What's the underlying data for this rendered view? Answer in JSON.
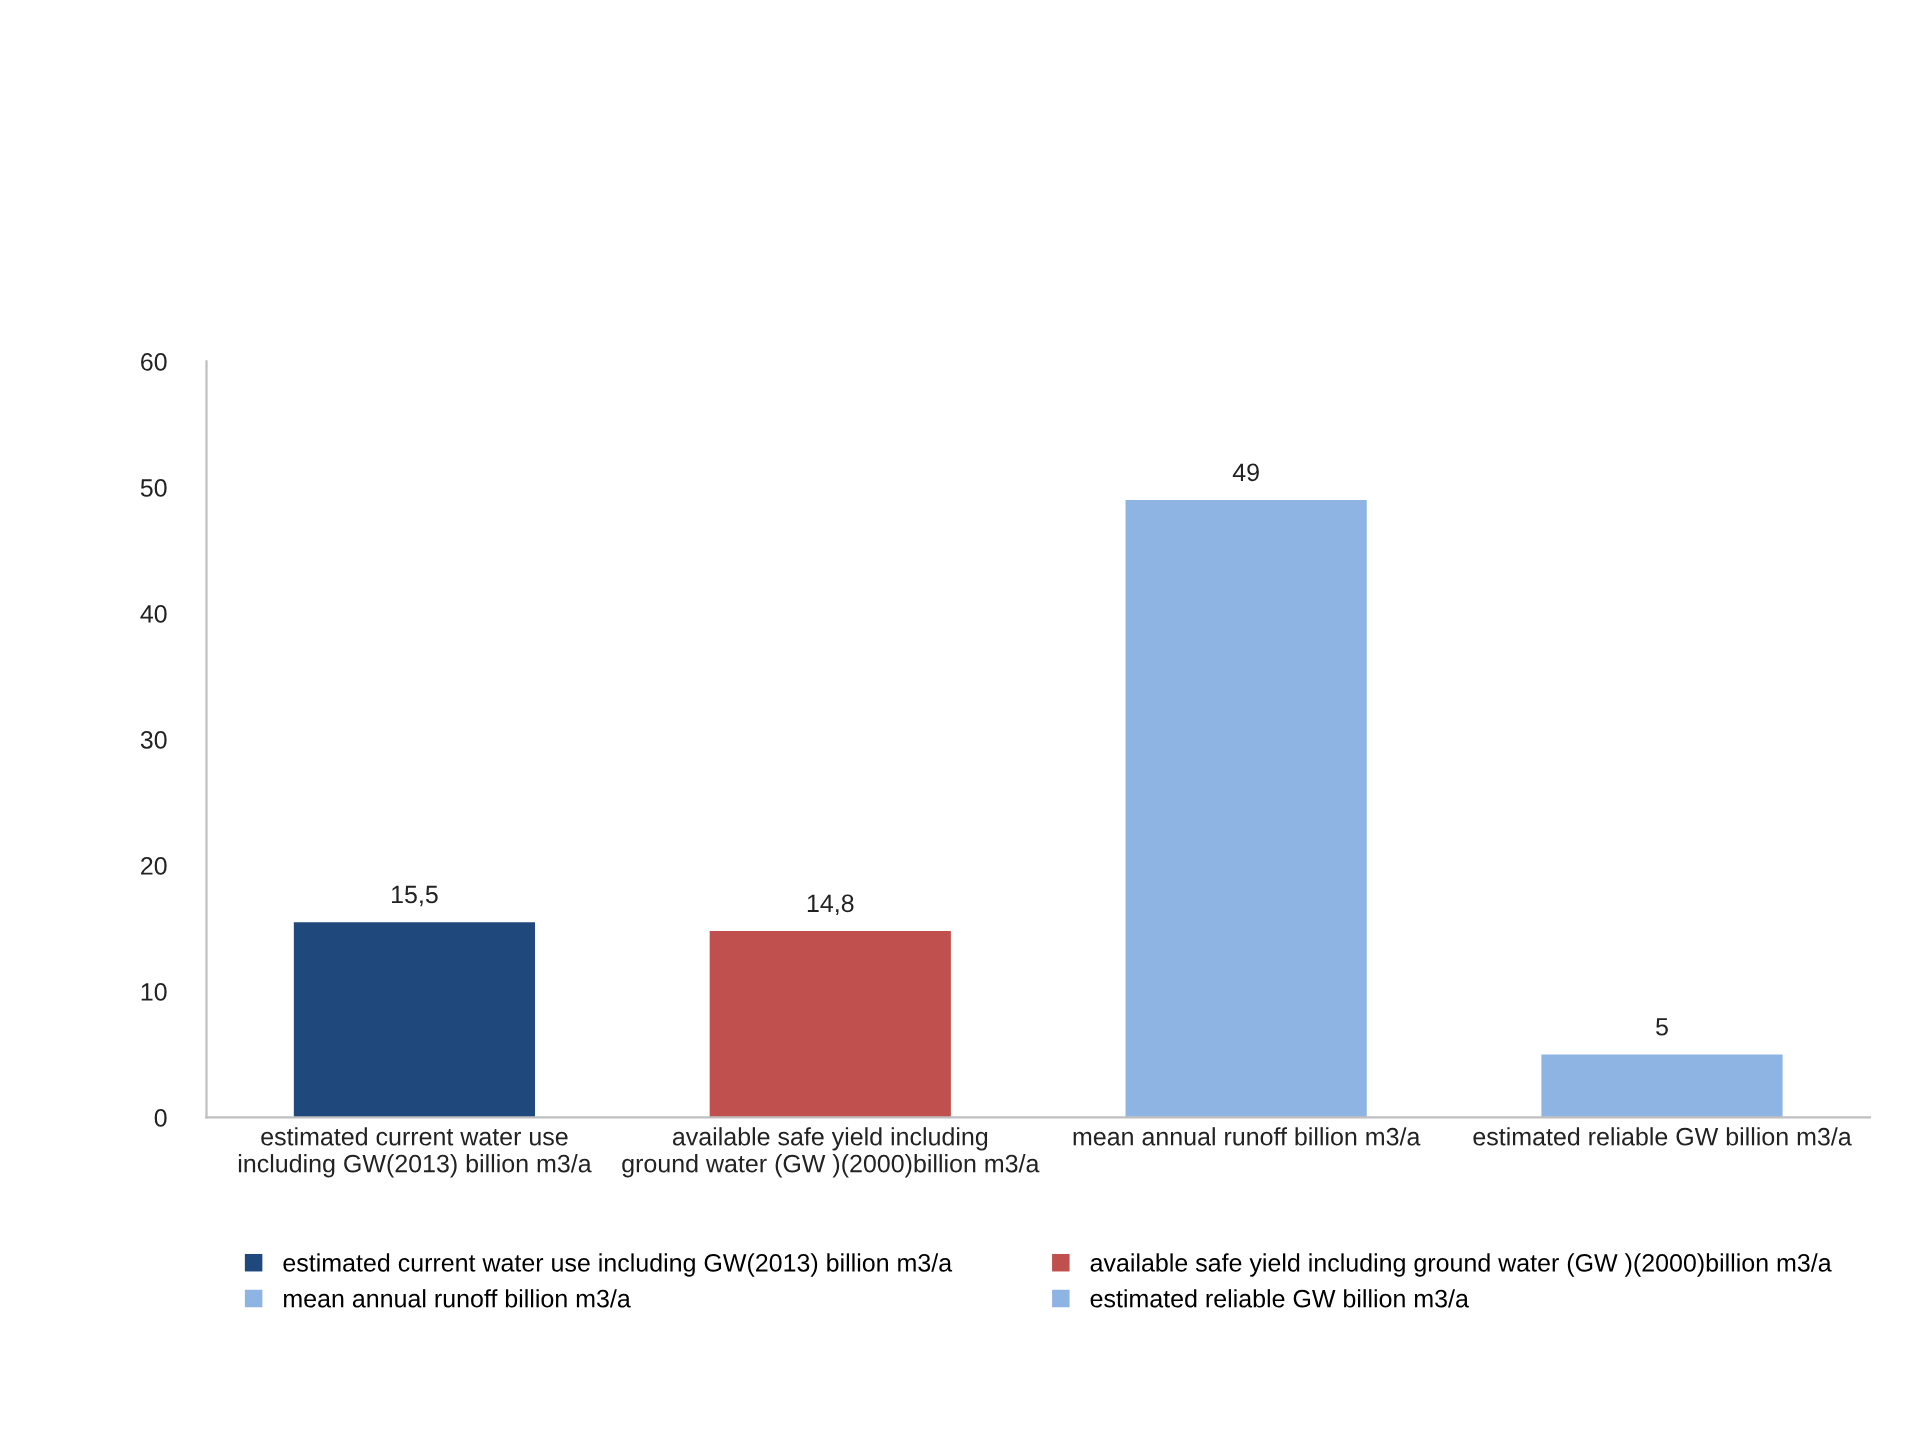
{
  "chart_data": {
    "type": "bar",
    "stacked": true,
    "categories": [
      "estimated current water use including GW(2013) billion m3/a",
      "available safe yield including ground water (GW )(2000)billion m3/a",
      "mean annual runoff billion m3/a",
      "estimated reliable GW billion m3/a"
    ],
    "series": [
      {
        "name": "estimated current water use including GW(2013) billion m3/a",
        "color": "#1f497d",
        "values": [
          15.5,
          null,
          null,
          null
        ],
        "value_labels": [
          "15,5",
          null,
          null,
          null
        ]
      },
      {
        "name": "available safe yield including ground water (GW )(2000)billion m3/a",
        "color": "#c0504d",
        "values": [
          null,
          14.8,
          null,
          null
        ],
        "value_labels": [
          null,
          "14,8",
          null,
          null
        ]
      },
      {
        "name": "mean annual runoff billion m3/a",
        "color": "#8eb4e3",
        "values": [
          null,
          null,
          49,
          null
        ],
        "value_labels": [
          null,
          null,
          "49",
          null
        ]
      },
      {
        "name": "estimated reliable GW billion m3/a",
        "color": "#8eb4e3",
        "values": [
          null,
          null,
          null,
          5
        ],
        "value_labels": [
          null,
          null,
          null,
          "5"
        ]
      }
    ],
    "ylim": [
      0,
      60
    ],
    "yticks": [
      0,
      10,
      20,
      30,
      40,
      50,
      60
    ],
    "grid": false,
    "legend": "bottom"
  }
}
